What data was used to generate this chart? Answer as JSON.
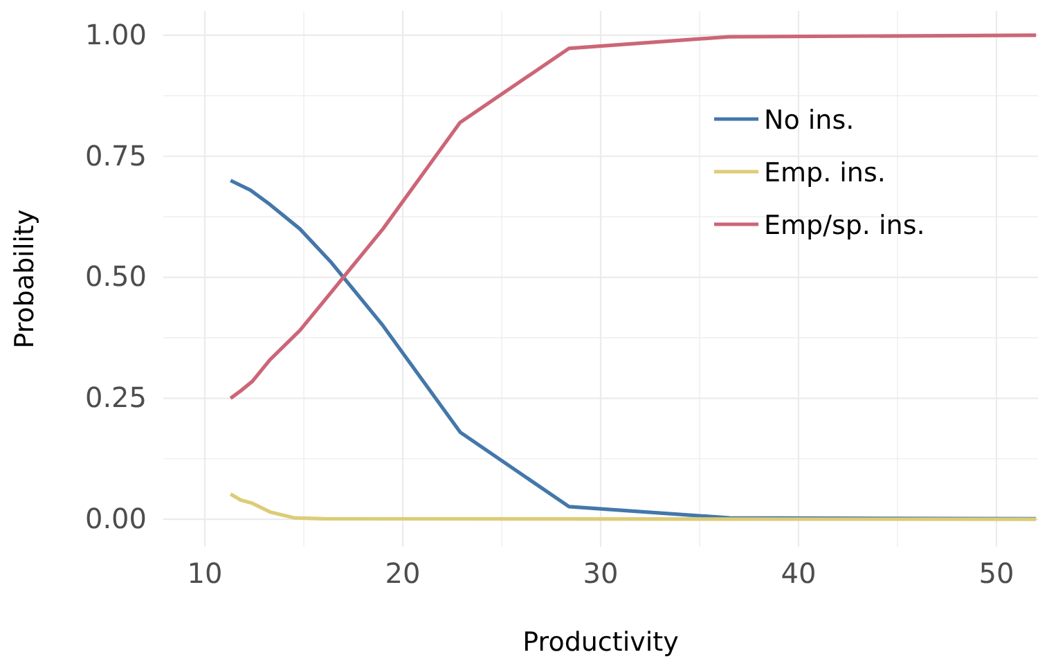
{
  "chart_data": {
    "type": "line",
    "xlabel": "Productivity",
    "ylabel": "Probability",
    "xlim": [
      7.9,
      52.1
    ],
    "ylim": [
      -0.057,
      1.05
    ],
    "xticks": [
      10,
      {
        "value": 15,
        "label": null
      },
      20,
      {
        "value": 25,
        "label": null
      },
      30,
      {
        "value": 35,
        "label": null
      },
      40,
      {
        "value": 45,
        "label": null
      },
      50
    ],
    "yticks": [
      {
        "value": 0,
        "label": "0.00"
      },
      {
        "value": 0.125,
        "label": null
      },
      0.25,
      {
        "value": 0.375,
        "label": null
      },
      {
        "value": 0.5,
        "label": "0.50"
      },
      {
        "value": 0.625,
        "label": null
      },
      0.75,
      {
        "value": 0.875,
        "label": null
      },
      {
        "value": 1,
        "label": "1.00"
      }
    ],
    "grid": true,
    "legend": "top right",
    "line_style": "solid",
    "series": [
      {
        "name": "No ins.",
        "color": "#4477aa",
        "x": [
          11.3,
          12.3,
          13.3,
          14.8,
          16.4,
          19,
          22.9,
          28.4,
          36.5,
          52
        ],
        "values": [
          0.7,
          0.68,
          0.65,
          0.6,
          0.53,
          0.4,
          0.18,
          0.026,
          0.003,
          0.001
        ]
      },
      {
        "name": "Emp. ins.",
        "color": "#ddcc77",
        "x": [
          11.3,
          11.8,
          12.4,
          13.3,
          14.5,
          16,
          52
        ],
        "values": [
          0.052,
          0.04,
          0.033,
          0.015,
          0.003,
          0.001,
          0
        ]
      },
      {
        "name": "Emp/sp. ins.",
        "color": "#cc6677",
        "x": [
          11.3,
          11.8,
          12.4,
          13.3,
          14.8,
          16.4,
          19,
          22.9,
          28.4,
          36.5,
          52
        ],
        "values": [
          0.25,
          0.265,
          0.285,
          0.33,
          0.39,
          0.47,
          0.6,
          0.82,
          0.973,
          0.997,
          1.0
        ]
      }
    ]
  }
}
